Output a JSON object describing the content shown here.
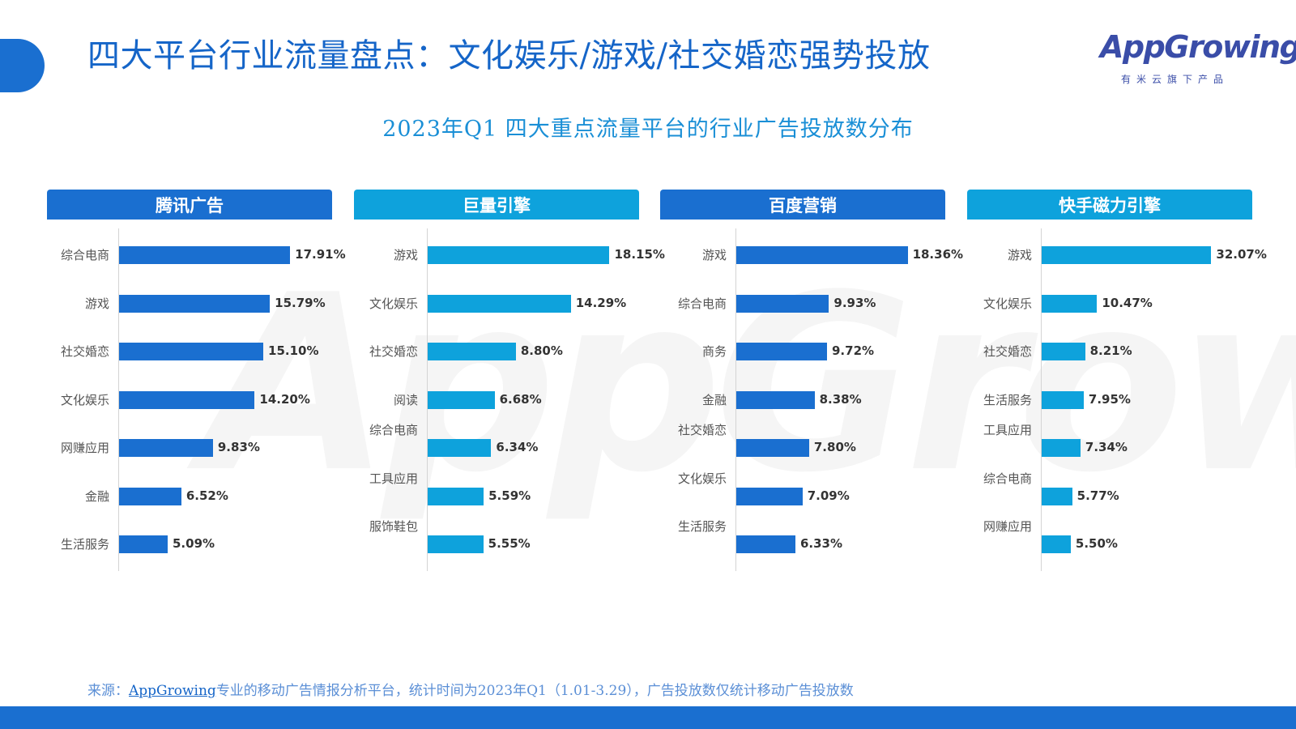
{
  "page_title": "四大平台行业流量盘点：文化娱乐/游戏/社交婚恋强势投放",
  "logo": {
    "word": "AppGrowing",
    "subtitle": "有米云旗下产品"
  },
  "chart_title": "2023年Q1 四大重点流量平台的行业广告投放数分布",
  "watermark": "AppGrowing",
  "source": {
    "prefix": "来源：",
    "link": "AppGrowing",
    "suffix": "专业的移动广告情报分析平台，统计时间为2023年Q1（1.01-3.29），广告投放数仅统计移动广告投放数"
  },
  "colors": {
    "dark_blue": "#1a6fd0",
    "light_blue": "#0ea2dc",
    "title_blue": "#1565c8"
  },
  "chart_data": [
    {
      "type": "bar",
      "orientation": "horizontal",
      "title": "腾讯广告",
      "color": "#1a6fd0",
      "categories": [
        "综合电商",
        "游戏",
        "社交婚恋",
        "文化娱乐",
        "网赚应用",
        "金融",
        "生活服务"
      ],
      "values": [
        17.91,
        15.79,
        15.1,
        14.2,
        9.83,
        6.52,
        5.09
      ],
      "labels": [
        "17.91%",
        "15.79%",
        "15.10%",
        "14.20%",
        "9.83%",
        "6.52%",
        "5.09%"
      ],
      "xlim": [
        0,
        19
      ]
    },
    {
      "type": "bar",
      "orientation": "horizontal",
      "title": "巨量引擎",
      "color": "#0ea2dc",
      "categories": [
        "游戏",
        "文化娱乐",
        "社交婚恋",
        "阅读",
        "综合电商",
        "工具应用",
        "服饰鞋包"
      ],
      "values": [
        18.15,
        14.29,
        8.8,
        6.68,
        6.34,
        5.59,
        5.55
      ],
      "labels": [
        "18.15%",
        "14.29%",
        "8.80%",
        "6.68%",
        "6.34%",
        "5.59%",
        "5.55%"
      ],
      "xlim": [
        0,
        19
      ]
    },
    {
      "type": "bar",
      "orientation": "horizontal",
      "title": "百度营销",
      "color": "#1a6fd0",
      "categories": [
        "游戏",
        "综合电商",
        "商务",
        "金融",
        "社交婚恋",
        "文化娱乐",
        "生活服务"
      ],
      "values": [
        18.36,
        9.93,
        9.72,
        8.38,
        7.8,
        7.09,
        6.33
      ],
      "labels": [
        "18.36%",
        "9.93%",
        "9.72%",
        "8.38%",
        "7.80%",
        "7.09%",
        "6.33%"
      ],
      "xlim": [
        0,
        21
      ]
    },
    {
      "type": "bar",
      "orientation": "horizontal",
      "title": "快手磁力引擎",
      "color": "#0ea2dc",
      "categories": [
        "游戏",
        "文化娱乐",
        "社交婚恋",
        "生活服务",
        "工具应用",
        "综合电商",
        "网赚应用"
      ],
      "values": [
        32.07,
        10.47,
        8.21,
        7.95,
        7.34,
        5.77,
        5.5
      ],
      "labels": [
        "32.07%",
        "10.47%",
        "8.21%",
        "7.95%",
        "7.34%",
        "5.77%",
        "5.50%"
      ],
      "xlim": [
        0,
        34
      ]
    }
  ]
}
